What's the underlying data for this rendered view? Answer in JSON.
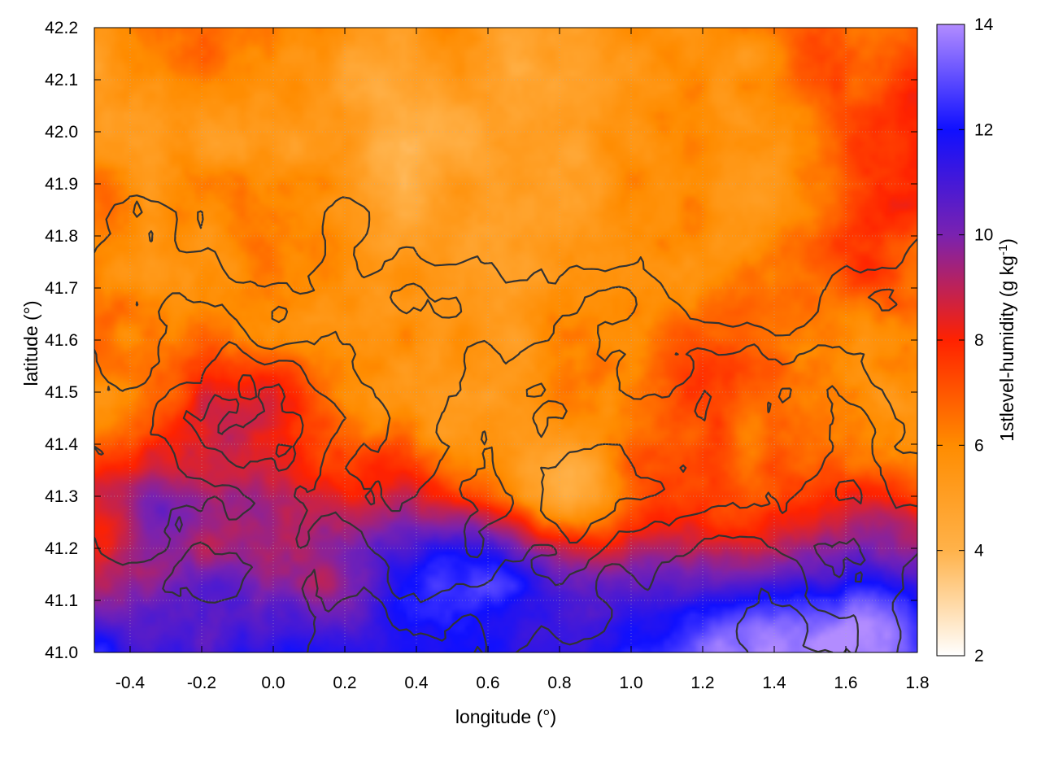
{
  "chart_data": {
    "type": "heatmap",
    "title": "",
    "xlabel": "longitude (°)",
    "ylabel": "latitude (°)",
    "xlim": [
      -0.5,
      1.8
    ],
    "ylim": [
      41.0,
      42.2
    ],
    "x_ticks": [
      "-0.4",
      "-0.2",
      "0.0",
      "0.2",
      "0.4",
      "0.6",
      "0.8",
      "1.0",
      "1.2",
      "1.4",
      "1.6",
      "1.8"
    ],
    "y_ticks": [
      "41.0",
      "41.1",
      "41.2",
      "41.3",
      "41.4",
      "41.5",
      "41.6",
      "41.7",
      "41.8",
      "41.9",
      "42.0",
      "42.1",
      "42.2"
    ],
    "grid": true,
    "colorbar": {
      "label": "1stlevel-humidity (g kg",
      "label_sup": "-1",
      "label_end": ")",
      "range": [
        2,
        14
      ],
      "ticks": [
        "2",
        "4",
        "6",
        "8",
        "10",
        "12",
        "14"
      ],
      "palette": [
        "#ffffff",
        "#ffb24a",
        "#ff8c00",
        "#ff2200",
        "#7a22b0",
        "#1010ff",
        "#b28cff"
      ]
    },
    "overlay": "contour lines of terrain elevation",
    "contour_color": "#333333"
  }
}
